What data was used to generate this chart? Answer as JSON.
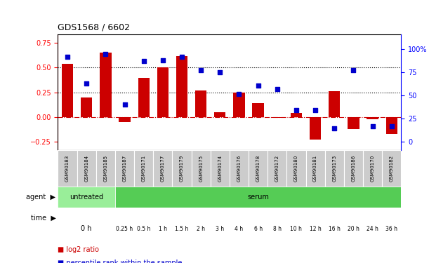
{
  "title": "GDS1568 / 6602",
  "samples": [
    "GSM90183",
    "GSM90184",
    "GSM90185",
    "GSM90187",
    "GSM90171",
    "GSM90177",
    "GSM90179",
    "GSM90175",
    "GSM90174",
    "GSM90176",
    "GSM90178",
    "GSM90172",
    "GSM90180",
    "GSM90181",
    "GSM90173",
    "GSM90186",
    "GSM90170",
    "GSM90182"
  ],
  "log2_ratio": [
    0.54,
    0.2,
    0.65,
    -0.05,
    0.4,
    0.5,
    0.62,
    0.27,
    0.05,
    0.25,
    0.14,
    -0.01,
    0.04,
    -0.23,
    0.26,
    -0.12,
    -0.02,
    -0.17
  ],
  "percentile_rank": [
    92,
    63,
    95,
    40,
    87,
    88,
    92,
    77,
    75,
    52,
    61,
    57,
    34,
    34,
    15,
    77,
    17,
    17
  ],
  "bar_color": "#cc0000",
  "dot_color": "#0000cc",
  "zeroline_color": "#cc0000",
  "yticks_left": [
    -0.25,
    0,
    0.25,
    0.5,
    0.75
  ],
  "yticks_right": [
    0,
    25,
    50,
    75,
    100
  ],
  "hline_values": [
    0.25,
    0.5
  ],
  "cell_bg": "#cccccc",
  "agent_row": {
    "n_untreated": 3,
    "untreated_color": "#99ee99",
    "serum_color": "#55cc55",
    "untreated_label": "untreated",
    "serum_label": "serum"
  },
  "time_row": {
    "labels": [
      "0 h",
      "0.25 h",
      "0.5 h",
      "1 h",
      "1.5 h",
      "2 h",
      "3 h",
      "4 h",
      "6 h",
      "8 h",
      "10 h",
      "12 h",
      "16 h",
      "20 h",
      "24 h",
      "36 h"
    ],
    "sample_indices": [
      [
        0,
        1,
        2
      ],
      [
        3
      ],
      [
        4
      ],
      [
        5
      ],
      [
        6
      ],
      [
        7
      ],
      [
        8
      ],
      [
        9
      ],
      [
        10
      ],
      [
        11
      ],
      [
        12
      ],
      [
        13
      ],
      [
        14
      ],
      [
        15
      ],
      [
        16
      ],
      [
        17
      ]
    ],
    "color_0h": "#ffddff",
    "color_serum": "#dd66dd"
  },
  "legend_items": [
    {
      "label": "log2 ratio",
      "color": "#cc0000"
    },
    {
      "label": "percentile rank within the sample",
      "color": "#0000cc"
    }
  ],
  "background_color": "#ffffff"
}
